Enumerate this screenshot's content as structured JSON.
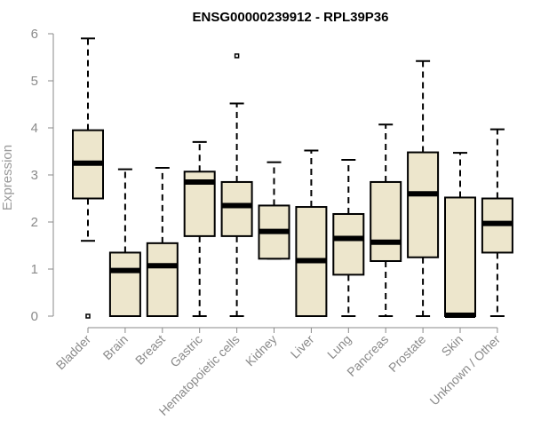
{
  "chart_data": {
    "type": "boxplot",
    "title": "ENSG00000239912 - RPL39P36",
    "xlabel": "",
    "ylabel": "Expression",
    "ylim": [
      0,
      6
    ],
    "yticks": [
      0,
      1,
      2,
      3,
      4,
      5,
      6
    ],
    "categories": [
      "Bladder",
      "Brain",
      "Breast",
      "Gastric",
      "Hematopoietic cells",
      "Kidney",
      "Liver",
      "Lung",
      "Pancreas",
      "Prostate",
      "Skin",
      "Unknown / Other"
    ],
    "series": [
      {
        "name": "Bladder",
        "whisker_low": 1.6,
        "q1": 2.5,
        "median": 3.25,
        "q3": 3.95,
        "whisker_high": 5.9,
        "outliers": [
          0.0
        ]
      },
      {
        "name": "Brain",
        "whisker_low": 0.0,
        "q1": 0.0,
        "median": 0.97,
        "q3": 1.35,
        "whisker_high": 3.12,
        "outliers": []
      },
      {
        "name": "Breast",
        "whisker_low": 0.0,
        "q1": 0.0,
        "median": 1.07,
        "q3": 1.55,
        "whisker_high": 3.15,
        "outliers": []
      },
      {
        "name": "Gastric",
        "whisker_low": 0.0,
        "q1": 1.7,
        "median": 2.85,
        "q3": 3.07,
        "whisker_high": 3.7,
        "outliers": []
      },
      {
        "name": "Hematopoietic cells",
        "whisker_low": 0.0,
        "q1": 1.7,
        "median": 2.35,
        "q3": 2.85,
        "whisker_high": 4.52,
        "outliers": [
          5.53
        ]
      },
      {
        "name": "Kidney",
        "whisker_low": 1.22,
        "q1": 1.22,
        "median": 1.8,
        "q3": 2.35,
        "whisker_high": 3.27,
        "outliers": []
      },
      {
        "name": "Liver",
        "whisker_low": 0.0,
        "q1": 0.0,
        "median": 1.18,
        "q3": 2.32,
        "whisker_high": 3.52,
        "outliers": []
      },
      {
        "name": "Lung",
        "whisker_low": 0.0,
        "q1": 0.88,
        "median": 1.65,
        "q3": 2.17,
        "whisker_high": 3.32,
        "outliers": []
      },
      {
        "name": "Pancreas",
        "whisker_low": 0.0,
        "q1": 1.17,
        "median": 1.57,
        "q3": 2.85,
        "whisker_high": 4.07,
        "outliers": []
      },
      {
        "name": "Prostate",
        "whisker_low": 0.0,
        "q1": 1.25,
        "median": 2.6,
        "q3": 3.48,
        "whisker_high": 5.42,
        "outliers": []
      },
      {
        "name": "Skin",
        "whisker_low": 0.0,
        "q1": 0.0,
        "median": 0.02,
        "q3": 2.52,
        "whisker_high": 3.47,
        "outliers": []
      },
      {
        "name": "Unknown / Other",
        "whisker_low": 0.0,
        "q1": 1.35,
        "median": 1.97,
        "q3": 2.5,
        "whisker_high": 3.97,
        "outliers": []
      }
    ],
    "colors": {
      "box_fill": "#ede6cc",
      "box_stroke": "#000000",
      "axis": "#8a8a8a"
    },
    "grid": false,
    "legend": "none"
  }
}
